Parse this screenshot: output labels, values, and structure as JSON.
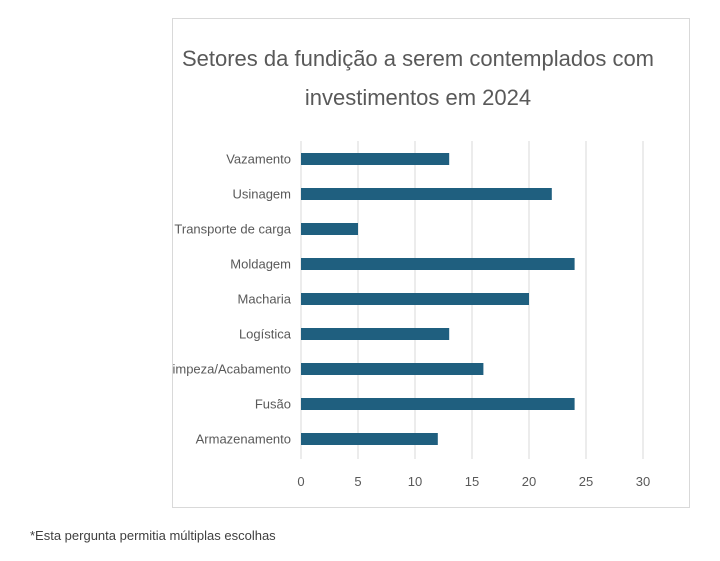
{
  "chart_data": {
    "type": "bar",
    "orientation": "horizontal",
    "title_lines": [
      "Setores da fundição a serem contemplados com",
      "investimentos em 2024"
    ],
    "categories": [
      "Vazamento",
      "Usinagem",
      "Transporte de carga",
      "Moldagem",
      "Macharia",
      "Logística",
      "Limpeza/Acabamento",
      "Fusão",
      "Armazenamento"
    ],
    "values": [
      13,
      22,
      5,
      24,
      20,
      13,
      16,
      24,
      12
    ],
    "xlim": [
      0,
      30
    ],
    "xticks": [
      "0",
      "5",
      "10",
      "15",
      "20",
      "25",
      "30"
    ],
    "grid": true,
    "bar_color": "#1f5f7f"
  },
  "footnote": "*Esta pergunta permitia múltiplas escolhas"
}
